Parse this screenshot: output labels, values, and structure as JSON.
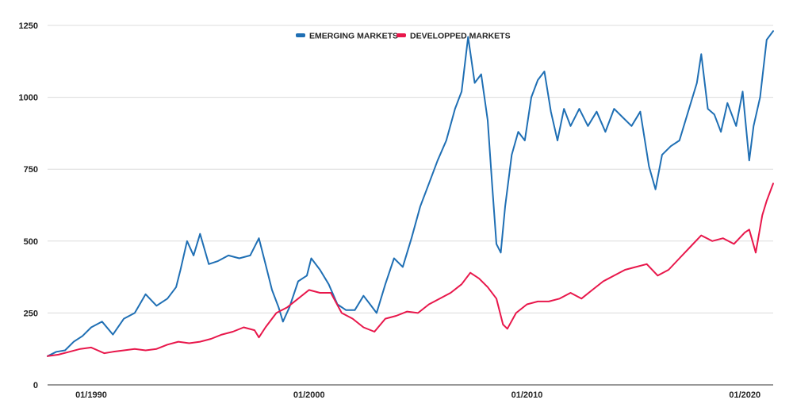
{
  "chart_data": {
    "type": "line",
    "title": "",
    "xlabel": "",
    "ylabel": "",
    "ylim": [
      0,
      1250
    ],
    "xlim": [
      1988,
      2021.3
    ],
    "y_ticks": [
      0,
      250,
      500,
      750,
      1000,
      1250
    ],
    "y_tick_labels": [
      "0",
      "250",
      "500",
      "750",
      "1000",
      "1250"
    ],
    "x_ticks": [
      1990,
      2000,
      2010,
      2020
    ],
    "x_tick_labels": [
      "01/1990",
      "01/2000",
      "01/2010",
      "01/2020"
    ],
    "grid": true,
    "legend_position": "top-center",
    "series": [
      {
        "name": "EMERGING MARKETS",
        "color": "#1f6fb4",
        "x": [
          1988.0,
          1988.4,
          1988.8,
          1989.2,
          1989.6,
          1990.0,
          1990.5,
          1991.0,
          1991.5,
          1992.0,
          1992.5,
          1993.0,
          1993.5,
          1993.9,
          1994.1,
          1994.4,
          1994.7,
          1995.0,
          1995.4,
          1995.8,
          1996.3,
          1996.8,
          1997.3,
          1997.7,
          1998.0,
          1998.3,
          1998.6,
          1998.8,
          1999.1,
          1999.5,
          1999.9,
          2000.1,
          2000.5,
          2000.9,
          2001.3,
          2001.7,
          2002.1,
          2002.5,
          2002.8,
          2003.1,
          2003.5,
          2003.9,
          2004.3,
          2004.7,
          2005.1,
          2005.5,
          2005.9,
          2006.3,
          2006.7,
          2007.0,
          2007.3,
          2007.6,
          2007.9,
          2008.2,
          2008.4,
          2008.6,
          2008.8,
          2009.0,
          2009.3,
          2009.6,
          2009.9,
          2010.2,
          2010.5,
          2010.8,
          2011.1,
          2011.4,
          2011.7,
          2012.0,
          2012.4,
          2012.8,
          2013.2,
          2013.6,
          2014.0,
          2014.4,
          2014.8,
          2015.2,
          2015.6,
          2015.9,
          2016.2,
          2016.6,
          2017.0,
          2017.4,
          2017.8,
          2018.0,
          2018.3,
          2018.6,
          2018.9,
          2019.2,
          2019.6,
          2019.9,
          2020.2,
          2020.4,
          2020.7,
          2021.0,
          2021.3
        ],
        "values": [
          100,
          115,
          120,
          150,
          170,
          200,
          220,
          175,
          230,
          250,
          315,
          275,
          300,
          340,
          400,
          500,
          450,
          525,
          420,
          430,
          450,
          440,
          450,
          510,
          420,
          330,
          270,
          220,
          270,
          360,
          380,
          440,
          400,
          350,
          280,
          260,
          260,
          310,
          280,
          250,
          350,
          440,
          410,
          510,
          620,
          700,
          780,
          850,
          960,
          1020,
          1210,
          1050,
          1080,
          920,
          700,
          490,
          460,
          620,
          800,
          880,
          850,
          1000,
          1060,
          1090,
          950,
          850,
          960,
          900,
          960,
          900,
          950,
          880,
          960,
          930,
          900,
          950,
          760,
          680,
          800,
          830,
          850,
          950,
          1050,
          1150,
          960,
          940,
          880,
          980,
          900,
          1020,
          780,
          900,
          1000,
          1200,
          1230
        ]
      },
      {
        "name": "DEVELOPPED MARKETS",
        "color": "#e8174b",
        "x": [
          1988.0,
          1988.5,
          1989.0,
          1989.5,
          1990.0,
          1990.3,
          1990.6,
          1991.0,
          1991.5,
          1992.0,
          1992.5,
          1993.0,
          1993.5,
          1994.0,
          1994.5,
          1995.0,
          1995.5,
          1996.0,
          1996.5,
          1997.0,
          1997.5,
          1997.7,
          1998.0,
          1998.5,
          1999.0,
          1999.5,
          2000.0,
          2000.5,
          2001.0,
          2001.5,
          2002.0,
          2002.5,
          2003.0,
          2003.5,
          2004.0,
          2004.5,
          2005.0,
          2005.5,
          2006.0,
          2006.5,
          2007.0,
          2007.4,
          2007.8,
          2008.2,
          2008.6,
          2008.9,
          2009.1,
          2009.5,
          2010.0,
          2010.5,
          2011.0,
          2011.5,
          2012.0,
          2012.5,
          2013.0,
          2013.5,
          2014.0,
          2014.5,
          2015.0,
          2015.5,
          2016.0,
          2016.5,
          2017.0,
          2017.5,
          2018.0,
          2018.5,
          2019.0,
          2019.5,
          2020.0,
          2020.2,
          2020.5,
          2020.8,
          2021.0,
          2021.3
        ],
        "values": [
          100,
          105,
          115,
          125,
          130,
          120,
          110,
          115,
          120,
          125,
          120,
          125,
          140,
          150,
          145,
          150,
          160,
          175,
          185,
          200,
          190,
          165,
          200,
          250,
          270,
          300,
          330,
          320,
          320,
          250,
          230,
          200,
          185,
          230,
          240,
          255,
          250,
          280,
          300,
          320,
          350,
          390,
          370,
          340,
          300,
          210,
          195,
          250,
          280,
          290,
          290,
          300,
          320,
          300,
          330,
          360,
          380,
          400,
          410,
          420,
          380,
          400,
          440,
          480,
          520,
          500,
          510,
          490,
          530,
          540,
          460,
          590,
          640,
          700
        ]
      }
    ]
  }
}
